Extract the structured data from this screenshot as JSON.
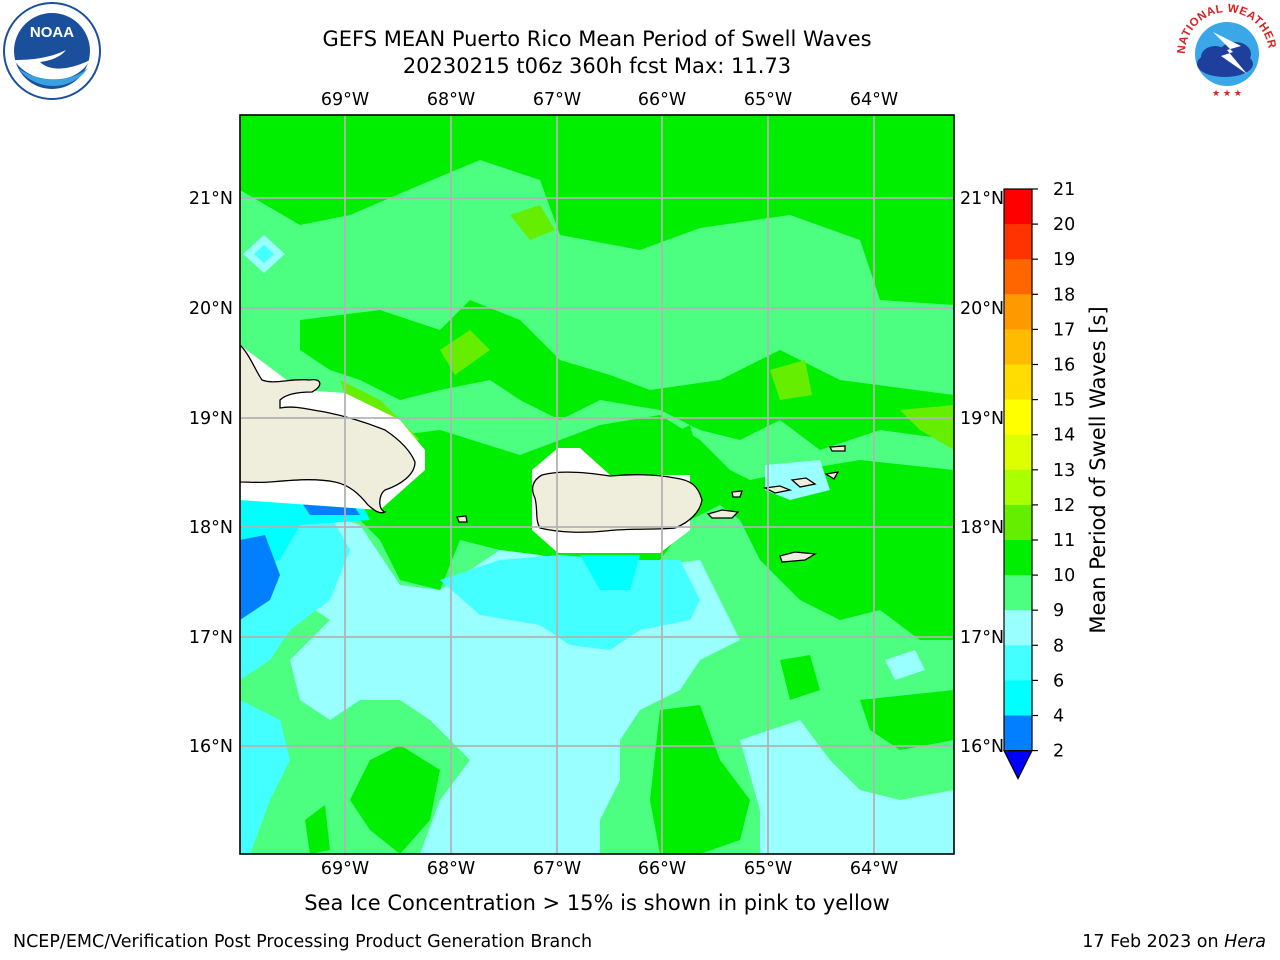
{
  "header": {
    "title_line1": "GEFS MEAN Puerto Rico Mean Period of Swell Waves",
    "title_line2": "20230215 t06z 360h fcst   Max: 11.73"
  },
  "map": {
    "lon_labels": [
      "69°W",
      "68°W",
      "67°W",
      "66°W",
      "65°W",
      "64°W"
    ],
    "lat_labels": [
      "21°N",
      "20°N",
      "19°N",
      "18°N",
      "17°N",
      "16°N"
    ],
    "colors": {
      "ocean_green": "#4dff80",
      "bright_green": "#00ee00",
      "light_cyan": "#99ffff",
      "cyan": "#44ffff",
      "aqua": "#00ffff",
      "blue": "#0080ff",
      "land": "#efeddc",
      "coast": "#000000",
      "grid": "#b3b3b3"
    }
  },
  "colorbar": {
    "label": "Mean Period of Swell Waves [s]",
    "ticks": [
      "21",
      "20",
      "19",
      "18",
      "17",
      "16",
      "15",
      "14",
      "13",
      "12",
      "11",
      "10",
      "9",
      "8",
      "6",
      "4",
      "2"
    ],
    "colors_top_to_bottom": [
      "#ff0000",
      "#ff3300",
      "#ff6600",
      "#ff9900",
      "#ffbb00",
      "#ffdd00",
      "#ffff00",
      "#ddff00",
      "#aaff00",
      "#66ee00",
      "#00ee00",
      "#4dff80",
      "#99ffff",
      "#44ffff",
      "#00ffff",
      "#0080ff"
    ],
    "extend_color": "#0000ff"
  },
  "logos": {
    "noaa_text": "NOAA",
    "nws_text": "NATIONAL WEATHER SERVICE"
  },
  "footer": {
    "subtitle": "Sea Ice Concentration > 15% is shown in pink to yellow",
    "left": "NCEP/EMC/Verification Post Processing Product Generation Branch",
    "right_prefix": "17 Feb 2023 on ",
    "right_host": "Hera"
  }
}
